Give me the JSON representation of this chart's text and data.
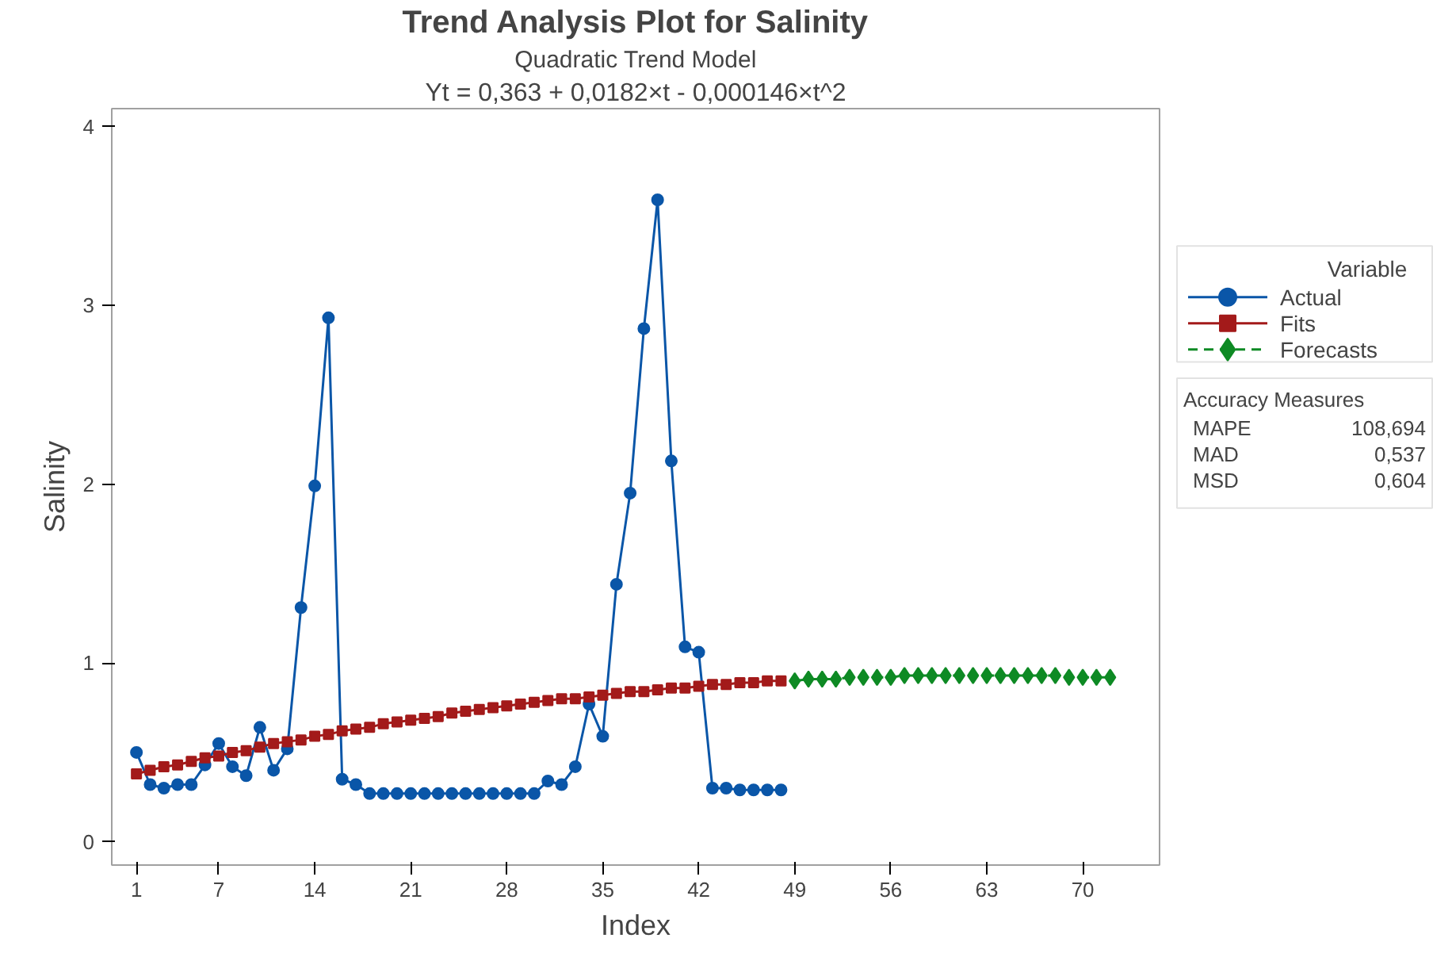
{
  "chart_data": {
    "type": "line",
    "title": "Trend Analysis Plot for Salinity",
    "subtitle": "Quadratic Trend Model",
    "xlabel": "Index",
    "ylabel": "Salinity",
    "legend_title": "Variable",
    "legend": "right",
    "grid": false,
    "xlim": [
      -0.8,
      75.6
    ],
    "ylim": [
      -0.13,
      4.1
    ],
    "xticks": [
      1,
      7,
      14,
      21,
      28,
      35,
      42,
      49,
      56,
      63,
      70
    ],
    "yticks": [
      0,
      1,
      2,
      3,
      4
    ],
    "annotations": [
      "Yt = 0,363 + 0,0182×t - 0,000146×t^2",
      "Accuracy Measures",
      "MAPE 108,694",
      "MAD 0,537",
      "MSD 0,604"
    ],
    "series": [
      {
        "name": "Actual",
        "color": "#0a56a8",
        "marker": "circle",
        "line_style": "solid",
        "x": [
          1,
          2,
          3,
          4,
          5,
          6,
          7,
          8,
          9,
          10,
          11,
          12,
          13,
          14,
          15,
          16,
          17,
          18,
          19,
          20,
          21,
          22,
          23,
          24,
          25,
          26,
          27,
          28,
          29,
          30,
          31,
          32,
          33,
          34,
          35,
          36,
          37,
          38,
          39,
          40,
          41,
          42,
          43,
          44,
          45,
          46,
          47,
          48
        ],
        "values": [
          0.5,
          0.32,
          0.3,
          0.32,
          0.32,
          0.43,
          0.55,
          0.42,
          0.37,
          0.64,
          0.4,
          0.52,
          1.31,
          1.99,
          2.93,
          0.35,
          0.32,
          0.27,
          0.27,
          0.27,
          0.27,
          0.27,
          0.27,
          0.27,
          0.27,
          0.27,
          0.27,
          0.27,
          0.27,
          0.27,
          0.34,
          0.32,
          0.42,
          0.77,
          0.59,
          1.44,
          1.95,
          2.87,
          3.59,
          2.13,
          1.09,
          1.06,
          0.3,
          0.3,
          0.29,
          0.29,
          0.29,
          0.29
        ]
      },
      {
        "name": "Fits",
        "color": "#a31a1a",
        "marker": "square",
        "line_style": "solid",
        "x": [
          1,
          2,
          3,
          4,
          5,
          6,
          7,
          8,
          9,
          10,
          11,
          12,
          13,
          14,
          15,
          16,
          17,
          18,
          19,
          20,
          21,
          22,
          23,
          24,
          25,
          26,
          27,
          28,
          29,
          30,
          31,
          32,
          33,
          34,
          35,
          36,
          37,
          38,
          39,
          40,
          41,
          42,
          43,
          44,
          45,
          46,
          47,
          48
        ],
        "values": [
          0.38,
          0.4,
          0.42,
          0.43,
          0.45,
          0.47,
          0.48,
          0.5,
          0.51,
          0.53,
          0.55,
          0.56,
          0.57,
          0.59,
          0.6,
          0.62,
          0.63,
          0.64,
          0.66,
          0.67,
          0.68,
          0.69,
          0.7,
          0.72,
          0.73,
          0.74,
          0.75,
          0.76,
          0.77,
          0.78,
          0.79,
          0.8,
          0.8,
          0.81,
          0.82,
          0.83,
          0.84,
          0.84,
          0.85,
          0.86,
          0.86,
          0.87,
          0.88,
          0.88,
          0.89,
          0.89,
          0.9,
          0.9
        ]
      },
      {
        "name": "Forecasts",
        "color": "#0e8a24",
        "marker": "diamond",
        "line_style": "dashed",
        "x": [
          49,
          50,
          51,
          52,
          53,
          54,
          55,
          56,
          57,
          58,
          59,
          60,
          61,
          62,
          63,
          64,
          65,
          66,
          67,
          68,
          69,
          70,
          71,
          72
        ],
        "values": [
          0.9,
          0.91,
          0.91,
          0.91,
          0.92,
          0.92,
          0.92,
          0.92,
          0.93,
          0.93,
          0.93,
          0.93,
          0.93,
          0.93,
          0.93,
          0.93,
          0.93,
          0.93,
          0.93,
          0.93,
          0.92,
          0.92,
          0.92,
          0.92
        ]
      }
    ]
  }
}
